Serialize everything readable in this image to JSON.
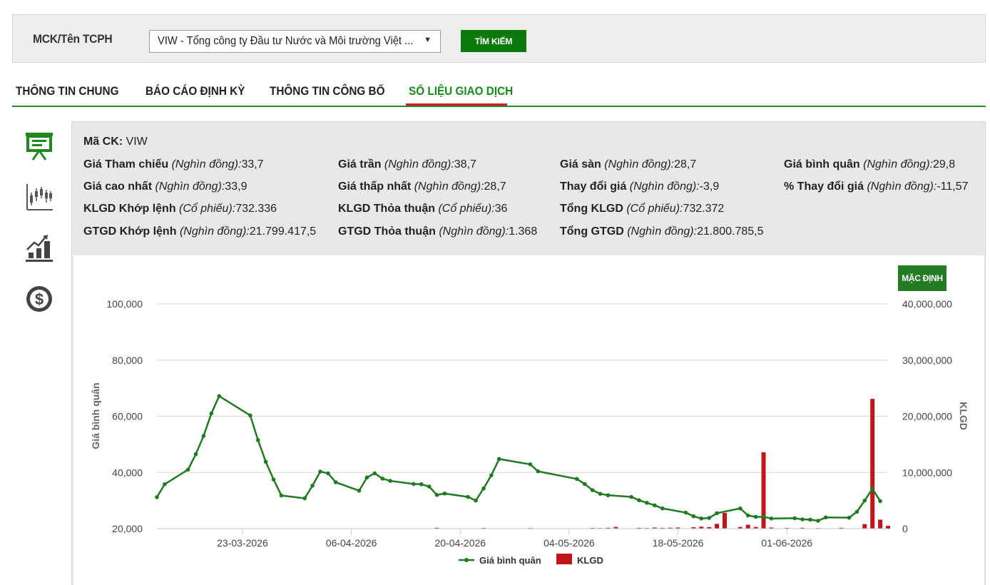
{
  "search": {
    "label": "MCK/Tên TCPH",
    "selected": "VIW - Tổng công ty Đầu tư Nước và Môi trường Việt ...",
    "button": "TÌM KIẾM"
  },
  "tabs": [
    {
      "label": "THÔNG TIN CHUNG"
    },
    {
      "label": "BÁO CÁO ĐỊNH KỲ"
    },
    {
      "label": "THÔNG TIN CÔNG BỐ"
    },
    {
      "label": "SỐ LIỆU GIAO DỊCH"
    }
  ],
  "sidebar": {
    "icons": [
      "presentation-board-icon",
      "candlestick-chart-icon",
      "bar-growth-chart-icon",
      "dollar-coin-icon"
    ]
  },
  "info": {
    "ma_ck": {
      "label": "Mã CK:",
      "value": "VIW"
    },
    "rows": [
      [
        {
          "label": "Giá Tham chiếu",
          "unit": "(Nghìn đồng):",
          "value": "33,7"
        },
        {
          "label": "Giá trần",
          "unit": "(Nghìn đồng):",
          "value": "38,7"
        },
        {
          "label": "Giá sàn",
          "unit": "(Nghìn đồng):",
          "value": "28,7"
        },
        {
          "label": "Giá bình quân",
          "unit": "(Nghìn đồng):",
          "value": "29,8"
        }
      ],
      [
        {
          "label": "Giá cao nhất",
          "unit": "(Nghìn đồng):",
          "value": "33,9"
        },
        {
          "label": "Giá thấp nhất",
          "unit": "(Nghìn đồng):",
          "value": "28,7"
        },
        {
          "label": "Thay đổi giá",
          "unit": "(Nghìn đồng):",
          "value": "-3,9"
        },
        {
          "label": "% Thay đổi giá",
          "unit": "(Nghìn đồng):",
          "value": "-11,57"
        }
      ],
      [
        {
          "label": "KLGD Khớp lệnh",
          "unit": "(Cổ phiếu):",
          "value": "732.336"
        },
        {
          "label": "KLGD Thỏa thuận",
          "unit": "(Cổ phiếu):",
          "value": "36"
        },
        {
          "label": "Tổng KLGD",
          "unit": "(Cổ phiếu):",
          "value": "732.372"
        }
      ],
      [
        {
          "label": "GTGD Khớp lệnh",
          "unit": "(Nghìn đồng):",
          "value": "21.799.417,5"
        },
        {
          "label": "GTGD Thỏa thuận",
          "unit": "(Nghìn đồng):",
          "value": "1.368"
        },
        {
          "label": "Tổng GTGD",
          "unit": "(Nghìn đồng):",
          "value": "21.800.785,5"
        }
      ]
    ]
  },
  "chart_button": "MẶC ĐỊNH",
  "chart_data": {
    "type": "line+bar",
    "ylabel": "Giá bình quân",
    "y2label": "KLGD",
    "ylim": [
      20000,
      100000
    ],
    "y2lim": [
      0,
      40000000
    ],
    "yticks": [
      "100,000",
      "80,000",
      "60,000",
      "40,000",
      "20,000"
    ],
    "y2ticks": [
      "40,000,000",
      "30,000,000",
      "20,000,000",
      "10,000,000",
      "0"
    ],
    "xticks": [
      "23-03-2026",
      "06-04-2026",
      "20-04-2026",
      "04-05-2026",
      "18-05-2026",
      "01-06-2026"
    ],
    "legend": [
      "Giá bình quân",
      "KLGD"
    ],
    "legend_position": "bottom",
    "colors": {
      "line": "#217a21",
      "bar": "#c0161b",
      "grid": "#d8d8d8"
    },
    "price": [
      [
        "12-03-2026",
        31200
      ],
      [
        "13-03-2026",
        35800
      ],
      [
        "16-03-2026",
        41000
      ],
      [
        "17-03-2026",
        46500
      ],
      [
        "18-03-2026",
        53000
      ],
      [
        "19-03-2026",
        61000
      ],
      [
        "20-03-2026",
        67200
      ],
      [
        "24-03-2026",
        60300
      ],
      [
        "25-03-2026",
        51500
      ],
      [
        "26-03-2026",
        43800
      ],
      [
        "27-03-2026",
        37500
      ],
      [
        "28-03-2026",
        31800
      ],
      [
        "31-03-2026",
        30800
      ],
      [
        "01-04-2026",
        35300
      ],
      [
        "02-04-2026",
        40300
      ],
      [
        "03-04-2026",
        39700
      ],
      [
        "04-04-2026",
        36500
      ],
      [
        "07-04-2026",
        33500
      ],
      [
        "08-04-2026",
        38200
      ],
      [
        "09-04-2026",
        39700
      ],
      [
        "10-04-2026",
        37800
      ],
      [
        "11-04-2026",
        37000
      ],
      [
        "14-04-2026",
        35900
      ],
      [
        "15-04-2026",
        35800
      ],
      [
        "16-04-2026",
        35000
      ],
      [
        "17-04-2026",
        32000
      ],
      [
        "18-04-2026",
        32500
      ],
      [
        "21-04-2026",
        31300
      ],
      [
        "22-04-2026",
        30000
      ],
      [
        "23-04-2026",
        34300
      ],
      [
        "24-04-2026",
        39000
      ],
      [
        "25-04-2026",
        44800
      ],
      [
        "29-04-2026",
        42900
      ],
      [
        "30-04-2026",
        40400
      ],
      [
        "05-05-2026",
        37700
      ],
      [
        "06-05-2026",
        35900
      ],
      [
        "07-05-2026",
        33700
      ],
      [
        "08-05-2026",
        32400
      ],
      [
        "09-05-2026",
        31900
      ],
      [
        "12-05-2026",
        31300
      ],
      [
        "13-05-2026",
        30100
      ],
      [
        "14-05-2026",
        29200
      ],
      [
        "15-05-2026",
        28300
      ],
      [
        "16-05-2026",
        27200
      ],
      [
        "19-05-2026",
        25700
      ],
      [
        "20-05-2026",
        24400
      ],
      [
        "21-05-2026",
        23600
      ],
      [
        "22-05-2026",
        23800
      ],
      [
        "23-05-2026",
        25500
      ],
      [
        "26-05-2026",
        27200
      ],
      [
        "27-05-2026",
        24700
      ],
      [
        "28-05-2026",
        24200
      ],
      [
        "29-05-2026",
        24200
      ],
      [
        "30-05-2026",
        23600
      ],
      [
        "02-06-2026",
        23700
      ],
      [
        "03-06-2026",
        23300
      ],
      [
        "04-06-2026",
        23200
      ],
      [
        "05-06-2026",
        22800
      ],
      [
        "06-06-2026",
        24000
      ],
      [
        "09-06-2026",
        23900
      ],
      [
        "10-06-2026",
        26000
      ],
      [
        "11-06-2026",
        30000
      ],
      [
        "12-06-2026",
        34200
      ],
      [
        "13-06-2026",
        29800
      ]
    ],
    "volume": [
      [
        "17-04-2026",
        150000
      ],
      [
        "23-04-2026",
        120000
      ],
      [
        "29-04-2026",
        110000
      ],
      [
        "07-05-2026",
        130000
      ],
      [
        "08-05-2026",
        100000
      ],
      [
        "09-05-2026",
        150000
      ],
      [
        "10-05-2026",
        300000
      ],
      [
        "13-05-2026",
        140000
      ],
      [
        "14-05-2026",
        110000
      ],
      [
        "15-05-2026",
        200000
      ],
      [
        "16-05-2026",
        140000
      ],
      [
        "17-05-2026",
        170000
      ],
      [
        "18-05-2026",
        200000
      ],
      [
        "20-05-2026",
        250000
      ],
      [
        "21-05-2026",
        350000
      ],
      [
        "22-05-2026",
        280000
      ],
      [
        "23-05-2026",
        850000
      ],
      [
        "24-05-2026",
        2800000
      ],
      [
        "26-05-2026",
        300000
      ],
      [
        "27-05-2026",
        700000
      ],
      [
        "28-05-2026",
        300000
      ],
      [
        "29-05-2026",
        13600000
      ],
      [
        "30-05-2026",
        200000
      ],
      [
        "01-06-2026",
        120000
      ],
      [
        "03-06-2026",
        150000
      ],
      [
        "05-06-2026",
        100000
      ],
      [
        "08-06-2026",
        150000
      ],
      [
        "11-06-2026",
        800000
      ],
      [
        "12-06-2026",
        23100000
      ],
      [
        "13-06-2026",
        1600000
      ],
      [
        "14-06-2026",
        500000
      ]
    ]
  }
}
